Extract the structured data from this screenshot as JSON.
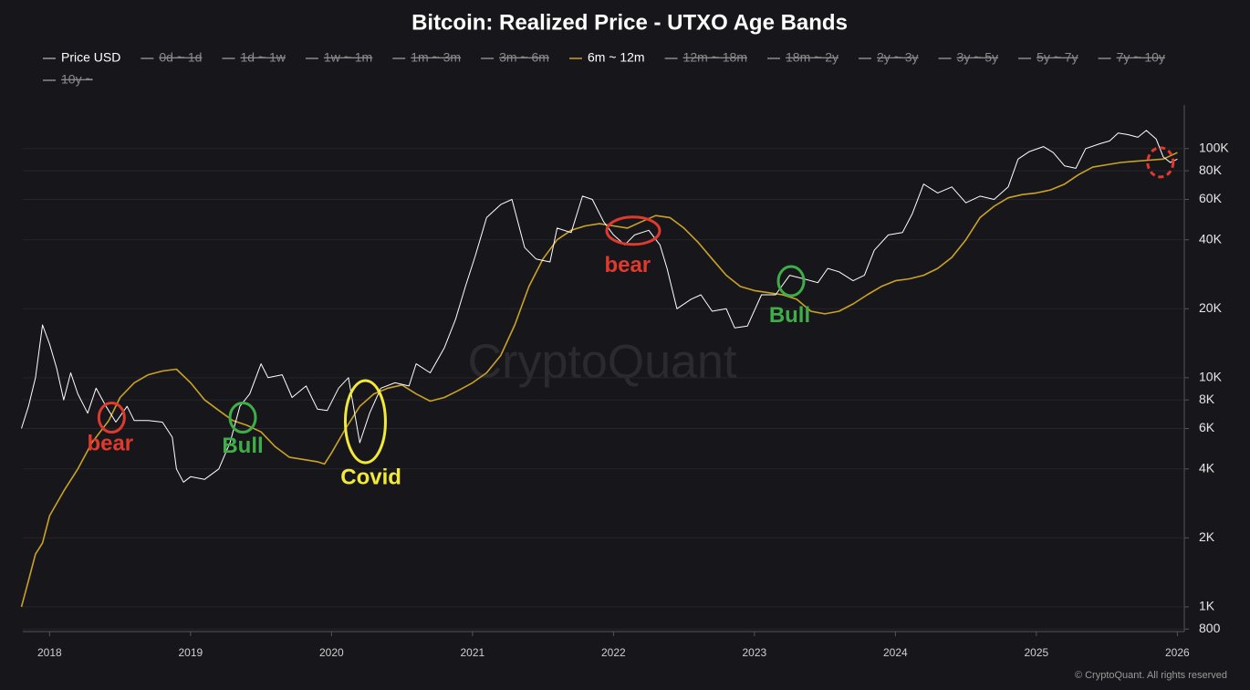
{
  "chart_data": {
    "type": "line",
    "title": "Bitcoin: Realized Price - UTXO Age Bands",
    "watermark": "CryptoQuant",
    "footer": "© CryptoQuant. All rights reserved",
    "log_scale": true,
    "grid": true,
    "legend_position": "top",
    "xlim": [
      2017.81,
      2026.03
    ],
    "xticks": [
      2018,
      2019,
      2020,
      2021,
      2022,
      2023,
      2024,
      2025,
      2026
    ],
    "ylim": [
      780,
      155000
    ],
    "yticks": [
      800,
      {
        "value": 1000,
        "label": "1K"
      },
      {
        "value": 2000,
        "label": "2K"
      },
      {
        "value": 4000,
        "label": "4K"
      },
      {
        "value": 6000,
        "label": "6K"
      },
      {
        "value": 8000,
        "label": "8K"
      },
      {
        "value": 10000,
        "label": "10K"
      },
      {
        "value": 20000,
        "label": "20K"
      },
      {
        "value": 40000,
        "label": "40K"
      },
      {
        "value": 60000,
        "label": "60K"
      },
      {
        "value": 80000,
        "label": "80K"
      },
      {
        "value": 100000,
        "label": "100K"
      }
    ],
    "series": [
      {
        "name": "Price USD",
        "color": "#ffffff",
        "visible": true,
        "x": [
          2017.8,
          2017.85,
          2017.9,
          2017.95,
          2018.0,
          2018.05,
          2018.1,
          2018.15,
          2018.2,
          2018.27,
          2018.33,
          2018.4,
          2018.47,
          2018.55,
          2018.6,
          2018.7,
          2018.8,
          2018.87,
          2018.9,
          2018.95,
          2019.0,
          2019.1,
          2019.2,
          2019.28,
          2019.35,
          2019.42,
          2019.5,
          2019.55,
          2019.65,
          2019.72,
          2019.82,
          2019.9,
          2019.97,
          2020.05,
          2020.12,
          2020.2,
          2020.27,
          2020.35,
          2020.45,
          2020.55,
          2020.6,
          2020.7,
          2020.8,
          2020.88,
          2020.95,
          2021.02,
          2021.1,
          2021.2,
          2021.28,
          2021.37,
          2021.45,
          2021.55,
          2021.6,
          2021.7,
          2021.78,
          2021.85,
          2021.93,
          2022.0,
          2022.08,
          2022.15,
          2022.25,
          2022.33,
          2022.38,
          2022.45,
          2022.55,
          2022.62,
          2022.7,
          2022.8,
          2022.86,
          2022.95,
          2023.05,
          2023.15,
          2023.25,
          2023.35,
          2023.45,
          2023.52,
          2023.6,
          2023.7,
          2023.78,
          2023.85,
          2023.95,
          2024.05,
          2024.12,
          2024.2,
          2024.3,
          2024.4,
          2024.5,
          2024.6,
          2024.7,
          2024.8,
          2024.87,
          2024.95,
          2025.05,
          2025.12,
          2025.2,
          2025.28,
          2025.35,
          2025.45,
          2025.52,
          2025.58,
          2025.65,
          2025.72,
          2025.78,
          2025.85,
          2025.9,
          2025.95,
          2026.0
        ],
        "values": [
          6000,
          7500,
          10000,
          17000,
          14000,
          11000,
          8000,
          10500,
          8500,
          7000,
          9000,
          7500,
          6400,
          7500,
          6500,
          6500,
          6400,
          5500,
          4000,
          3500,
          3700,
          3600,
          4000,
          5200,
          7500,
          8500,
          11500,
          10000,
          10300,
          8200,
          9200,
          7300,
          7200,
          9000,
          10000,
          5200,
          7000,
          9000,
          9500,
          9200,
          11500,
          10500,
          13500,
          18000,
          25000,
          34000,
          50000,
          57000,
          60000,
          37000,
          33000,
          32000,
          45000,
          43000,
          62000,
          60000,
          48000,
          42000,
          38000,
          42000,
          44000,
          38000,
          30000,
          20000,
          22000,
          23000,
          19500,
          20000,
          16500,
          16800,
          23000,
          23000,
          28000,
          27000,
          26000,
          30000,
          29000,
          26500,
          28000,
          36000,
          42000,
          43000,
          52000,
          70000,
          64000,
          68000,
          58000,
          62000,
          60000,
          68000,
          90000,
          97000,
          102000,
          96000,
          84000,
          82000,
          100000,
          105000,
          108000,
          117000,
          115000,
          112000,
          120000,
          110000,
          92000,
          87000,
          90000
        ]
      },
      {
        "name": "0d ~ 1d",
        "visible": false
      },
      {
        "name": "1d ~ 1w",
        "visible": false
      },
      {
        "name": "1w ~ 1m",
        "visible": false
      },
      {
        "name": "1m ~ 3m",
        "visible": false
      },
      {
        "name": "3m ~ 6m",
        "visible": false
      },
      {
        "name": "6m ~ 12m",
        "color": "#c9a227",
        "visible": true,
        "x": [
          2017.8,
          2017.85,
          2017.9,
          2017.95,
          2018.0,
          2018.1,
          2018.2,
          2018.3,
          2018.42,
          2018.5,
          2018.6,
          2018.7,
          2018.8,
          2018.9,
          2019.0,
          2019.1,
          2019.2,
          2019.3,
          2019.4,
          2019.5,
          2019.6,
          2019.7,
          2019.8,
          2019.9,
          2019.95,
          2020.0,
          2020.1,
          2020.2,
          2020.3,
          2020.4,
          2020.5,
          2020.6,
          2020.7,
          2020.8,
          2020.9,
          2021.0,
          2021.1,
          2021.2,
          2021.3,
          2021.4,
          2021.5,
          2021.6,
          2021.7,
          2021.8,
          2021.9,
          2022.0,
          2022.1,
          2022.2,
          2022.3,
          2022.4,
          2022.5,
          2022.6,
          2022.7,
          2022.8,
          2022.9,
          2023.0,
          2023.1,
          2023.2,
          2023.3,
          2023.4,
          2023.5,
          2023.6,
          2023.7,
          2023.8,
          2023.9,
          2024.0,
          2024.1,
          2024.2,
          2024.3,
          2024.4,
          2024.5,
          2024.6,
          2024.7,
          2024.8,
          2024.9,
          2025.0,
          2025.1,
          2025.2,
          2025.3,
          2025.4,
          2025.5,
          2025.6,
          2025.7,
          2025.8,
          2025.9,
          2026.0
        ],
        "values": [
          1000,
          1300,
          1700,
          1900,
          2500,
          3200,
          4000,
          5200,
          6500,
          8200,
          9500,
          10300,
          10700,
          10900,
          9500,
          8000,
          7200,
          6500,
          6200,
          5800,
          5000,
          4500,
          4400,
          4300,
          4200,
          4700,
          6000,
          7500,
          8500,
          9000,
          9300,
          8500,
          7900,
          8200,
          8800,
          9500,
          10500,
          12500,
          17000,
          25000,
          33000,
          40000,
          44000,
          46000,
          47000,
          46000,
          45000,
          48000,
          51000,
          50000,
          45000,
          39000,
          33000,
          28000,
          25000,
          24000,
          23500,
          23000,
          22000,
          19500,
          19000,
          19500,
          21000,
          23000,
          25000,
          26500,
          27000,
          28000,
          30000,
          33500,
          40000,
          50000,
          56000,
          61000,
          63000,
          64000,
          66000,
          70000,
          77000,
          83000,
          85000,
          87000,
          88000,
          89000,
          90000,
          96000
        ]
      },
      {
        "name": "12m ~ 18m",
        "visible": false
      },
      {
        "name": "18m ~ 2y",
        "visible": false
      },
      {
        "name": "2y ~ 3y",
        "visible": false
      },
      {
        "name": "3y ~ 5y",
        "visible": false
      },
      {
        "name": "5y ~ 7y",
        "visible": false
      },
      {
        "name": "7y ~ 10y",
        "visible": false
      },
      {
        "name": "10y ~",
        "visible": false
      }
    ],
    "annotations": [
      {
        "text": "bear",
        "color": "#e03a2f",
        "shape": "circle",
        "dashed": false,
        "x": 2018.44,
        "y": 6700,
        "text_x": 2018.43,
        "text_y": 5100
      },
      {
        "text": "Bull",
        "color": "#3fae49",
        "shape": "circle",
        "dashed": false,
        "x": 2019.37,
        "y": 6700,
        "text_x": 2019.37,
        "text_y": 4980
      },
      {
        "text": "Covid",
        "color": "#f2ea3a",
        "shape": "tall",
        "dashed": false,
        "x": 2020.24,
        "y": 6430,
        "text_x": 2020.28,
        "text_y": 3640
      },
      {
        "text": "bear",
        "color": "#e03a2f",
        "shape": "wide",
        "dashed": false,
        "x": 2022.14,
        "y": 43800,
        "text_x": 2022.1,
        "text_y": 30600
      },
      {
        "text": "Bull",
        "color": "#3fae49",
        "shape": "circle",
        "dashed": false,
        "x": 2023.26,
        "y": 26400,
        "text_x": 2023.25,
        "text_y": 18500
      },
      {
        "color": "#e03a2f",
        "shape": "circle",
        "dashed": true,
        "x": 2025.88,
        "y": 87100
      }
    ]
  }
}
